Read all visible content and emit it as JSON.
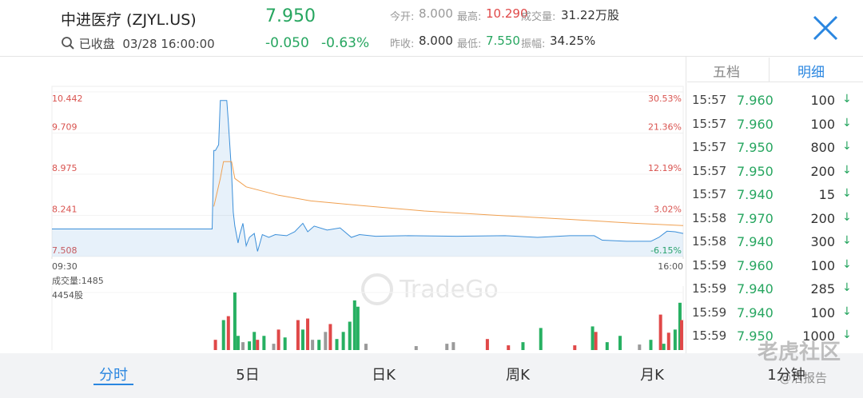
{
  "header": {
    "name": "中进医疗 (ZJYL.US)",
    "price": "7.950",
    "change": "-0.050",
    "change_pct": "-0.63%",
    "status": "已收盘",
    "datetime": "03/28 16:00:00",
    "stats": [
      {
        "label": "今开:",
        "value": "8.000",
        "color": "#999999"
      },
      {
        "label": "最高:",
        "value": "10.290",
        "color": "#e04848"
      },
      {
        "label": "成交量:",
        "value": "31.22万股",
        "color": "#333333"
      },
      {
        "label": "昨收:",
        "value": "8.000",
        "color": "#333333"
      },
      {
        "label": "最低:",
        "value": "7.550",
        "color": "#27a660"
      },
      {
        "label": "振幅:",
        "value": "34.25%",
        "color": "#333333"
      }
    ]
  },
  "chart_data": {
    "type": "line",
    "watermark": "TradeGo",
    "xlim": [
      0,
      390
    ],
    "xticks": [
      {
        "value": 0,
        "label": "09:30"
      },
      {
        "value": 390,
        "label": "16:00"
      }
    ],
    "ylim": [
      7.508,
      10.442
    ],
    "yticks": [
      10.442,
      9.709,
      8.975,
      8.241,
      7.508
    ],
    "y2lim": [
      -6.15,
      30.53
    ],
    "y2ticks": [
      {
        "value": 30.53,
        "label": "30.53%"
      },
      {
        "value": 21.36,
        "label": "21.36%"
      },
      {
        "value": 12.19,
        "label": "12.19%"
      },
      {
        "value": 3.02,
        "label": "3.02%"
      },
      {
        "value": -6.15,
        "label": "-6.15%"
      }
    ],
    "series": [
      {
        "name": "price",
        "color": "#3b8fd9",
        "x": [
          0,
          99,
          100,
          101,
          103,
          104,
          108,
          109,
          111,
          112,
          113,
          115,
          116,
          118,
          120,
          122,
          125,
          127,
          130,
          134,
          138,
          145,
          150,
          155,
          158,
          162,
          170,
          178,
          185,
          190,
          200,
          220,
          250,
          280,
          300,
          320,
          335,
          340,
          355,
          370,
          375,
          380,
          385,
          390
        ],
        "values": [
          8.0,
          8.0,
          9.4,
          9.4,
          9.5,
          10.29,
          10.29,
          9.9,
          9.0,
          8.3,
          8.05,
          7.75,
          7.9,
          8.1,
          7.7,
          7.85,
          7.92,
          7.6,
          7.9,
          7.85,
          7.9,
          7.88,
          7.95,
          8.1,
          7.95,
          8.05,
          7.98,
          8.02,
          7.85,
          7.9,
          7.87,
          7.88,
          7.87,
          7.88,
          7.85,
          7.88,
          7.88,
          7.8,
          7.78,
          7.78,
          7.85,
          7.96,
          7.95,
          7.92
        ]
      },
      {
        "name": "average",
        "color": "#f0a050",
        "x": [
          100,
          104,
          106,
          111,
          113,
          120,
          140,
          160,
          190,
          230,
          270,
          320,
          360,
          390
        ],
        "values": [
          8.4,
          8.9,
          9.2,
          9.2,
          8.9,
          8.75,
          8.6,
          8.5,
          8.42,
          8.32,
          8.25,
          8.17,
          8.1,
          8.06
        ]
      }
    ],
    "volume": {
      "label": "成交量:1485",
      "ylim": [
        0,
        4454
      ],
      "yticks": [
        {
          "value": 4454,
          "label": "4454股"
        }
      ],
      "x": [
        101,
        106,
        109,
        113,
        115,
        118,
        122,
        125,
        127,
        131,
        137,
        140,
        144,
        152,
        155,
        158,
        161,
        165,
        169,
        172,
        176,
        180,
        184,
        187,
        189,
        194,
        225,
        244,
        248,
        269,
        282,
        291,
        302,
        323,
        334,
        336,
        343,
        351,
        363,
        370,
        376,
        378,
        381,
        385,
        388,
        389
      ],
      "values": [
        793,
        2318,
        2623,
        4454,
        1098,
        610,
        671,
        1403,
        793,
        1098,
        488,
        1586,
        976,
        2318,
        1586,
        2440,
        793,
        793,
        1403,
        2013,
        854,
        1403,
        2196,
        3844,
        3356,
        488,
        305,
        488,
        610,
        854,
        366,
        610,
        1708,
        366,
        1830,
        1403,
        610,
        1098,
        427,
        793,
        2745,
        488,
        1342,
        1586,
        3661,
        2318
      ],
      "colors": [
        "#e04848",
        "#27b062",
        "#e04848",
        "#27b062",
        "#27b062",
        "#9a9a9a",
        "#27b062",
        "#27b062",
        "#e04848",
        "#27b062",
        "#9a9a9a",
        "#e04848",
        "#27b062",
        "#e04848",
        "#27b062",
        "#e04848",
        "#9a9a9a",
        "#27b062",
        "#9a9a9a",
        "#e04848",
        "#27b062",
        "#27b062",
        "#27b062",
        "#27b062",
        "#27b062",
        "#9a9a9a",
        "#9a9a9a",
        "#9a9a9a",
        "#9a9a9a",
        "#e04848",
        "#e04848",
        "#27b062",
        "#27b062",
        "#e04848",
        "#27b062",
        "#e04848",
        "#27b062",
        "#27b062",
        "#9a9a9a",
        "#27b062",
        "#e04848",
        "#27b062",
        "#e04848",
        "#27b062",
        "#27b062",
        "#e04848"
      ]
    }
  },
  "side_tabs": [
    "五档",
    "明细"
  ],
  "trades": [
    [
      "15:57",
      "7.960",
      "100",
      "↓"
    ],
    [
      "15:57",
      "7.960",
      "100",
      "↓"
    ],
    [
      "15:57",
      "7.950",
      "800",
      "↓"
    ],
    [
      "15:57",
      "7.950",
      "200",
      "↓"
    ],
    [
      "15:57",
      "7.940",
      "15",
      "↓"
    ],
    [
      "15:58",
      "7.970",
      "200",
      "↓"
    ],
    [
      "15:58",
      "7.940",
      "300",
      "↓"
    ],
    [
      "15:59",
      "7.960",
      "100",
      "↓"
    ],
    [
      "15:59",
      "7.940",
      "285",
      "↓"
    ],
    [
      "15:59",
      "7.940",
      "100",
      "↓"
    ],
    [
      "15:59",
      "7.950",
      "1000",
      "↓"
    ]
  ],
  "bottom_tabs": [
    "分时",
    "5日",
    "日K",
    "周K",
    "月K",
    "1分钟"
  ],
  "watermark": {
    "brand": "老虎社区",
    "user": "@活报告"
  }
}
